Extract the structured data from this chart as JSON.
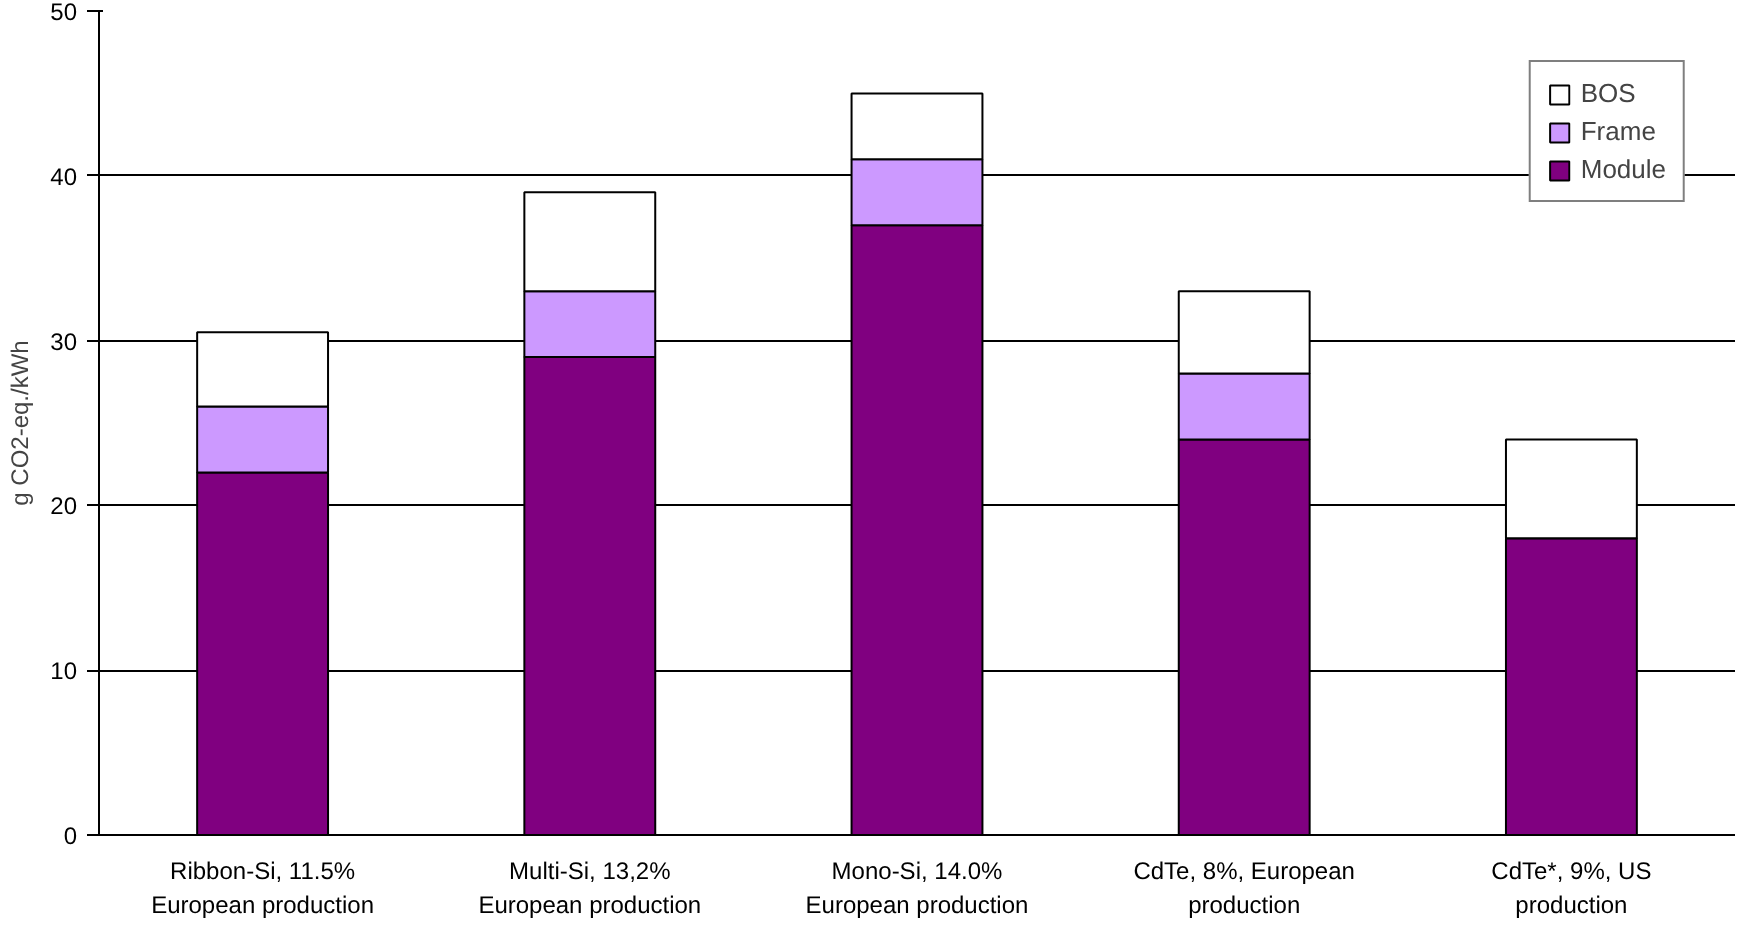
{
  "chart_data": {
    "type": "bar",
    "stacked": true,
    "ylabel": "g CO2-eq./kWh",
    "categories": [
      "Ribbon-Si, 11.5%\nEuropean production",
      "Multi-Si, 13,2%\nEuropean production",
      "Mono-Si, 14.0%\nEuropean production",
      "CdTe, 8%, European\nproduction",
      "CdTe*, 9%, US\nproduction"
    ],
    "series": [
      {
        "name": "Module",
        "color": "#800080",
        "values": [
          22,
          29,
          37,
          24,
          18
        ]
      },
      {
        "name": "Frame",
        "color": "#cc99ff",
        "values": [
          4,
          4,
          4,
          4,
          0
        ]
      },
      {
        "name": "BOS",
        "color": "#ffffff",
        "values": [
          4.5,
          6,
          4,
          5,
          6
        ]
      }
    ],
    "ylim": [
      0,
      50
    ],
    "yticks": [
      0,
      10,
      20,
      30,
      40,
      50
    ],
    "grid": "y",
    "legend": "top right"
  }
}
